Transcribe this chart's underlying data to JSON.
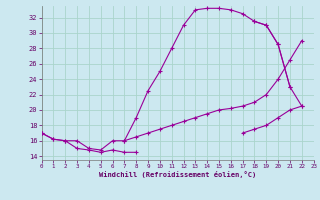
{
  "bg_color": "#cce8f0",
  "grid_color": "#aad4cc",
  "line_color": "#990099",
  "xlabel": "Windchill (Refroidissement éolien,°C)",
  "xlim": [
    0,
    23
  ],
  "ylim": [
    13.5,
    33.5
  ],
  "yticks": [
    14,
    16,
    18,
    20,
    22,
    24,
    26,
    28,
    30,
    32
  ],
  "xticks": [
    0,
    1,
    2,
    3,
    4,
    5,
    6,
    7,
    8,
    9,
    10,
    11,
    12,
    13,
    14,
    15,
    16,
    17,
    18,
    19,
    20,
    21,
    22,
    23
  ],
  "curve1_x": [
    0,
    1,
    2,
    3,
    4,
    5,
    6,
    7,
    8,
    9,
    10,
    11,
    12,
    13,
    14,
    15,
    16,
    17,
    18,
    19,
    20,
    21
  ],
  "curve1_y": [
    17.0,
    16.2,
    16.0,
    16.0,
    15.0,
    14.8,
    16.0,
    16.0,
    19.0,
    22.5,
    25.0,
    28.0,
    31.0,
    33.0,
    33.2,
    33.2,
    33.0,
    32.5,
    31.5,
    31.0,
    28.5,
    23.0
  ],
  "curve2_x": [
    0,
    1,
    2,
    3,
    4,
    5,
    6,
    7,
    8
  ],
  "curve2_y": [
    17.0,
    16.2,
    16.0,
    15.0,
    14.8,
    14.5,
    14.8,
    14.5,
    14.5
  ],
  "curve3_x": [
    7,
    8,
    9,
    10,
    11,
    12,
    13,
    14,
    15,
    16,
    17,
    18,
    19,
    20,
    21,
    22
  ],
  "curve3_y": [
    16.0,
    16.5,
    17.0,
    17.5,
    18.0,
    18.5,
    19.0,
    19.5,
    20.0,
    20.2,
    20.5,
    21.0,
    22.0,
    24.0,
    26.5,
    29.0
  ],
  "curve4_x": [
    18,
    19,
    20,
    21,
    22
  ],
  "curve4_y": [
    31.5,
    31.0,
    28.5,
    23.0,
    20.5
  ],
  "curve5_x": [
    17,
    18,
    19,
    20,
    21,
    22
  ],
  "curve5_y": [
    17.0,
    17.5,
    18.0,
    19.0,
    20.0,
    20.5
  ]
}
